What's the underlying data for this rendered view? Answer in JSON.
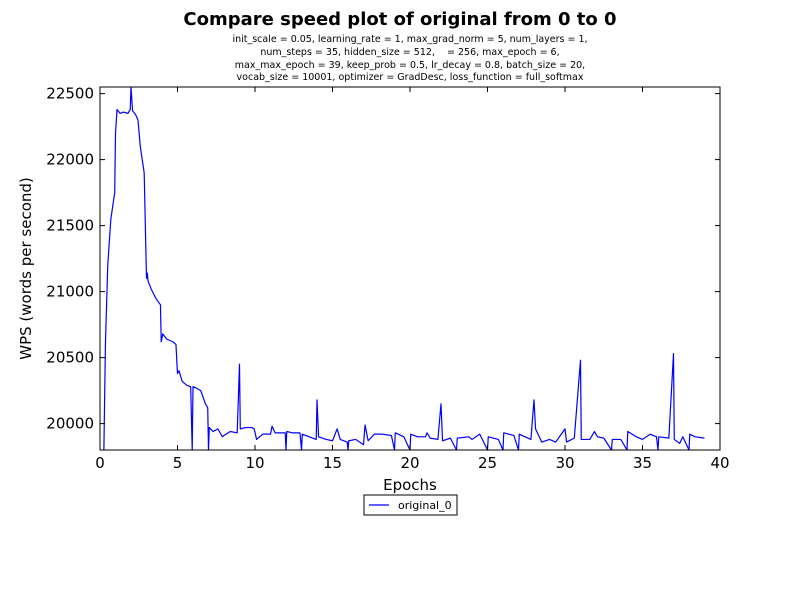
{
  "chart_data": {
    "type": "line",
    "title": "Compare speed plot of original from 0 to 0",
    "subtitle_lines": [
      "init_scale = 0.05, learning_rate = 1, max_grad_norm = 5, num_layers = 1,",
      "num_steps = 35, hidden_size = 512,    = 256, max_epoch = 6,",
      "max_max_epoch = 39, keep_prob = 0.5, lr_decay = 0.8, batch_size = 20,",
      "vocab_size = 10001, optimizer = GradDesc, loss_function = full_softmax"
    ],
    "xlabel": "Epochs",
    "ylabel": "WPS (words per second)",
    "xlim": [
      0,
      40
    ],
    "ylim": [
      19800,
      22550
    ],
    "xticks": [
      0,
      5,
      10,
      15,
      20,
      25,
      30,
      35,
      40
    ],
    "yticks": [
      20000,
      20500,
      21000,
      21500,
      22000,
      22500
    ],
    "grid": false,
    "legend_position": "below-center",
    "series": [
      {
        "name": "original_0",
        "color": "#0000ff",
        "points": [
          [
            0.25,
            19800
          ],
          [
            0.35,
            20600
          ],
          [
            0.5,
            21200
          ],
          [
            0.7,
            21550
          ],
          [
            0.95,
            21750
          ],
          [
            1.0,
            22200
          ],
          [
            1.1,
            22380
          ],
          [
            1.3,
            22350
          ],
          [
            1.5,
            22360
          ],
          [
            1.8,
            22350
          ],
          [
            1.95,
            22380
          ],
          [
            2.0,
            22550
          ],
          [
            2.1,
            22370
          ],
          [
            2.3,
            22340
          ],
          [
            2.45,
            22300
          ],
          [
            2.6,
            22100
          ],
          [
            2.85,
            21900
          ],
          [
            3.0,
            21100
          ],
          [
            3.05,
            21140
          ],
          [
            3.1,
            21080
          ],
          [
            3.3,
            21020
          ],
          [
            3.6,
            20950
          ],
          [
            3.9,
            20900
          ],
          [
            3.95,
            20620
          ],
          [
            4.05,
            20680
          ],
          [
            4.3,
            20640
          ],
          [
            4.7,
            20620
          ],
          [
            4.9,
            20600
          ],
          [
            5.0,
            20380
          ],
          [
            5.1,
            20400
          ],
          [
            5.3,
            20320
          ],
          [
            5.6,
            20290
          ],
          [
            5.85,
            20280
          ],
          [
            5.95,
            19800
          ],
          [
            6.0,
            20280
          ],
          [
            6.2,
            20270
          ],
          [
            6.5,
            20250
          ],
          [
            6.8,
            20150
          ],
          [
            6.95,
            20120
          ],
          [
            7.0,
            19800
          ],
          [
            7.05,
            19970
          ],
          [
            7.3,
            19940
          ],
          [
            7.6,
            19960
          ],
          [
            7.9,
            19900
          ],
          [
            8.0,
            19910
          ],
          [
            8.4,
            19940
          ],
          [
            8.85,
            19930
          ],
          [
            9.0,
            20450
          ],
          [
            9.05,
            19960
          ],
          [
            9.4,
            19970
          ],
          [
            9.8,
            19970
          ],
          [
            9.95,
            19960
          ],
          [
            10.1,
            19880
          ],
          [
            10.5,
            19920
          ],
          [
            11.0,
            19920
          ],
          [
            11.1,
            19980
          ],
          [
            11.3,
            19930
          ],
          [
            11.8,
            19930
          ],
          [
            11.95,
            19930
          ],
          [
            12.0,
            19800
          ],
          [
            12.05,
            19940
          ],
          [
            12.4,
            19930
          ],
          [
            12.9,
            19930
          ],
          [
            13.0,
            19800
          ],
          [
            13.05,
            19920
          ],
          [
            13.5,
            19900
          ],
          [
            13.95,
            19880
          ],
          [
            14.0,
            20180
          ],
          [
            14.1,
            19900
          ],
          [
            14.6,
            19880
          ],
          [
            15.0,
            19870
          ],
          [
            15.3,
            19960
          ],
          [
            15.5,
            19880
          ],
          [
            15.95,
            19860
          ],
          [
            16.0,
            19800
          ],
          [
            16.05,
            19870
          ],
          [
            16.5,
            19880
          ],
          [
            17.0,
            19840
          ],
          [
            17.1,
            19990
          ],
          [
            17.3,
            19870
          ],
          [
            17.7,
            19920
          ],
          [
            18.2,
            19920
          ],
          [
            18.8,
            19910
          ],
          [
            19.0,
            19800
          ],
          [
            19.05,
            19930
          ],
          [
            19.6,
            19900
          ],
          [
            20.0,
            19800
          ],
          [
            20.05,
            19920
          ],
          [
            20.5,
            19900
          ],
          [
            21.0,
            19900
          ],
          [
            21.1,
            19930
          ],
          [
            21.3,
            19890
          ],
          [
            21.8,
            19880
          ],
          [
            22.0,
            20150
          ],
          [
            22.1,
            19870
          ],
          [
            22.6,
            19890
          ],
          [
            23.0,
            19800
          ],
          [
            23.05,
            19890
          ],
          [
            23.8,
            19900
          ],
          [
            24.0,
            19880
          ],
          [
            24.5,
            19920
          ],
          [
            25.0,
            19800
          ],
          [
            25.05,
            19900
          ],
          [
            25.7,
            19880
          ],
          [
            26.0,
            19800
          ],
          [
            26.05,
            19930
          ],
          [
            26.7,
            19910
          ],
          [
            27.0,
            19800
          ],
          [
            27.05,
            19920
          ],
          [
            27.8,
            19880
          ],
          [
            28.0,
            20180
          ],
          [
            28.1,
            19960
          ],
          [
            28.5,
            19860
          ],
          [
            29.0,
            19880
          ],
          [
            29.4,
            19860
          ],
          [
            30.0,
            19960
          ],
          [
            30.1,
            19860
          ],
          [
            30.6,
            19890
          ],
          [
            31.0,
            20480
          ],
          [
            31.05,
            19880
          ],
          [
            31.6,
            19880
          ],
          [
            31.9,
            19940
          ],
          [
            32.1,
            19900
          ],
          [
            32.5,
            19890
          ],
          [
            33.0,
            19800
          ],
          [
            33.05,
            19880
          ],
          [
            33.6,
            19880
          ],
          [
            34.0,
            19800
          ],
          [
            34.05,
            19940
          ],
          [
            34.6,
            19900
          ],
          [
            35.0,
            19880
          ],
          [
            35.5,
            19920
          ],
          [
            35.9,
            19900
          ],
          [
            36.0,
            19800
          ],
          [
            36.05,
            19900
          ],
          [
            36.7,
            19890
          ],
          [
            37.0,
            20530
          ],
          [
            37.05,
            19880
          ],
          [
            37.4,
            19850
          ],
          [
            37.6,
            19900
          ],
          [
            38.0,
            19800
          ],
          [
            38.05,
            19920
          ],
          [
            38.4,
            19900
          ],
          [
            39.0,
            19890
          ]
        ]
      }
    ]
  }
}
